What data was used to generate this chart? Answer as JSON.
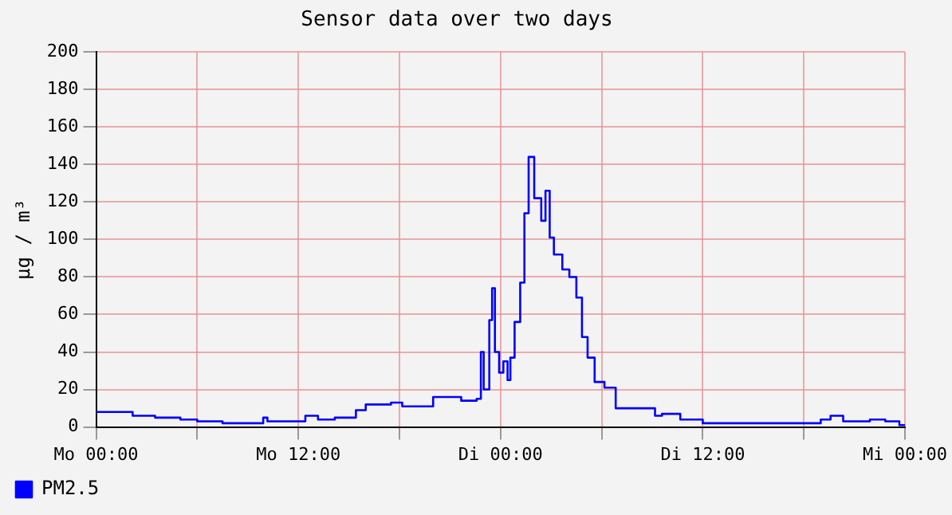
{
  "chart_data": {
    "type": "step",
    "title": "Sensor data over two days",
    "ylabel": "µg / m³",
    "xlim": [
      "--01-01T00:00",
      "--01-03T00:00"
    ],
    "xticks": [
      {
        "value": "--01-01T00:00",
        "label": "Mo 00:00"
      },
      {
        "value": "--01-01T06:00",
        "label": null
      },
      {
        "value": "--01-01T12:00",
        "label": "Mo 12:00"
      },
      {
        "value": "--01-01T18:00",
        "label": null
      },
      {
        "value": "--01-02T00:00",
        "label": "Di 00:00"
      },
      {
        "value": "--01-02T06:00",
        "label": null
      },
      {
        "value": "--01-02T12:00",
        "label": "Di 12:00"
      },
      {
        "value": "--01-02T18:00",
        "label": null
      },
      {
        "value": "--01-03T00:00",
        "label": "Mi 00:00"
      }
    ],
    "ylim": [
      0,
      200
    ],
    "yticks": [
      0,
      20,
      40,
      60,
      80,
      100,
      120,
      140,
      160,
      180,
      200
    ],
    "grid": true,
    "legend": "bottom left",
    "marker": "none",
    "line_style": "solid",
    "series": [
      {
        "name": "PM2.5",
        "color": "#0000ff",
        "x": [
          "--01-01T00:00",
          "--01-01T01:10",
          "--01-01T02:10",
          "--01-01T03:30",
          "--01-01T05:00",
          "--01-01T06:00",
          "--01-01T07:30",
          "--01-01T09:35",
          "--01-01T09:55",
          "--01-01T10:10",
          "--01-01T12:25",
          "--01-01T13:10",
          "--01-01T14:10",
          "--01-01T15:00",
          "--01-01T15:25",
          "--01-01T16:00",
          "--01-01T17:30",
          "--01-01T18:10",
          "--01-01T20:00",
          "--01-01T21:40",
          "--01-01T22:35",
          "--01-01T22:50",
          "--01-01T23:00",
          "--01-01T23:20",
          "--01-01T23:30",
          "--01-01T23:40",
          "--01-01T23:55",
          "--01-02T00:10",
          "--01-02T00:25",
          "--01-02T00:35",
          "--01-02T00:50",
          "--01-02T01:10",
          "--01-02T01:25",
          "--01-02T01:40",
          "--01-02T02:00",
          "--01-02T02:25",
          "--01-02T02:40",
          "--01-02T02:55",
          "--01-02T03:10",
          "--01-02T03:40",
          "--01-02T04:05",
          "--01-02T04:30",
          "--01-02T04:50",
          "--01-02T05:10",
          "--01-02T05:35",
          "--01-02T06:10",
          "--01-02T06:50",
          "--01-02T07:50",
          "--01-02T08:50",
          "--01-02T09:10",
          "--01-02T09:35",
          "--01-02T10:40",
          "--01-02T12:00",
          "--01-02T14:00",
          "--01-02T17:40",
          "--01-02T19:00",
          "--01-02T19:35",
          "--01-02T20:20",
          "--01-02T21:55",
          "--01-02T22:50",
          "--01-02T23:40",
          "--01-03T00:00"
        ],
        "values": [
          8,
          8,
          6,
          5,
          4,
          3,
          2,
          2,
          5,
          3,
          6,
          4,
          5,
          5,
          9,
          12,
          13,
          11,
          16,
          14,
          15,
          40,
          20,
          57,
          74,
          40,
          29,
          35,
          25,
          37,
          56,
          77,
          114,
          144,
          122,
          110,
          126,
          101,
          92,
          84,
          80,
          69,
          48,
          37,
          24,
          21,
          10,
          10,
          10,
          6,
          7,
          4,
          2,
          2,
          2,
          4,
          6,
          3,
          4,
          3,
          1,
          1
        ]
      }
    ]
  }
}
